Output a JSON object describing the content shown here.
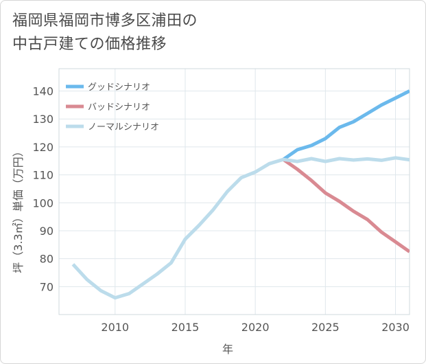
{
  "title": {
    "line1": "福岡県福岡市博多区浦田の",
    "line2": "中古戸建ての価格推移"
  },
  "chart_data": {
    "type": "line",
    "xlabel": "年",
    "ylabel": "坪（3.3㎡）単価（万円）",
    "xlim": [
      2006,
      2031
    ],
    "ylim": [
      60,
      148
    ],
    "x_ticks": [
      2010,
      2015,
      2020,
      2025,
      2030
    ],
    "y_ticks": [
      70,
      80,
      90,
      100,
      110,
      120,
      130,
      140
    ],
    "grid": true,
    "legend_position": "top-left",
    "series": [
      {
        "name": "グッドシナリオ",
        "color": "#6bb9ec",
        "x": [
          2022,
          2023,
          2024,
          2025,
          2026,
          2027,
          2028,
          2029,
          2030,
          2031
        ],
        "values": [
          115.5,
          119,
          120.5,
          123,
          127,
          129,
          132,
          135,
          137.5,
          140
        ]
      },
      {
        "name": "バッドシナリオ",
        "color": "#d98a92",
        "x": [
          2022,
          2023,
          2024,
          2025,
          2026,
          2027,
          2028,
          2029,
          2030,
          2031
        ],
        "values": [
          115.5,
          112,
          108,
          103.5,
          100.5,
          97,
          94,
          89.5,
          86,
          82.5
        ]
      },
      {
        "name": "ノーマルシナリオ",
        "color": "#bcdceb",
        "x": [
          2007,
          2008,
          2009,
          2010,
          2011,
          2012,
          2013,
          2014,
          2015,
          2016,
          2017,
          2018,
          2019,
          2020,
          2021,
          2022,
          2023,
          2024,
          2025,
          2026,
          2027,
          2028,
          2029,
          2030,
          2031
        ],
        "values": [
          78,
          72.5,
          68.5,
          66,
          67.5,
          71,
          74.5,
          78.5,
          87,
          92,
          97.5,
          104,
          109,
          111,
          114,
          115.5,
          114.8,
          115.8,
          114.8,
          115.8,
          115.3,
          115.7,
          115.2,
          116.1,
          115.4
        ]
      }
    ]
  }
}
